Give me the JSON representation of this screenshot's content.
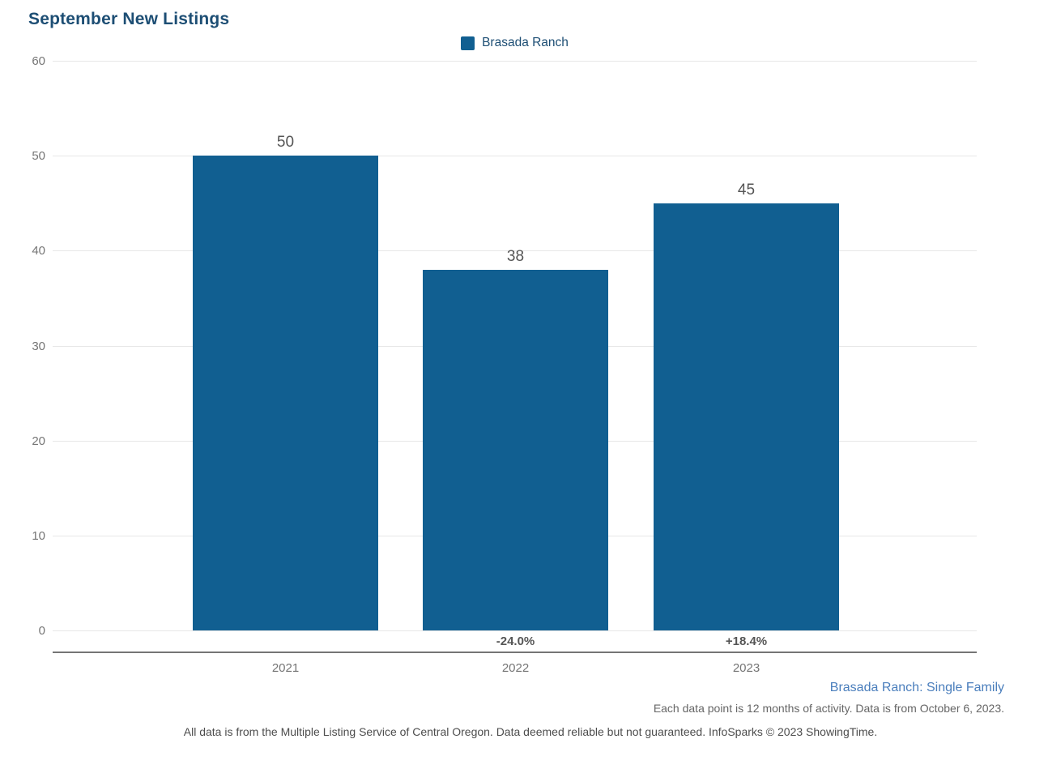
{
  "chart_data": {
    "type": "bar",
    "title": "September New Listings",
    "series": [
      {
        "name": "Brasada Ranch",
        "values": [
          50,
          38,
          45
        ]
      }
    ],
    "categories": [
      "2021",
      "2022",
      "2023"
    ],
    "value_labels": [
      "50",
      "38",
      "45"
    ],
    "pct_change_labels": [
      "",
      "-24.0%",
      "+18.4%"
    ],
    "ylim": [
      0,
      60
    ],
    "yticks": [
      0,
      10,
      20,
      30,
      40,
      50,
      60
    ],
    "grid": true,
    "legend_position": "top-center",
    "xlabel": "",
    "ylabel": ""
  },
  "colors": {
    "bar": "#115F91",
    "title": "#1D4E74",
    "legend_text": "#1D4E74",
    "tick_text": "#757575",
    "value_text": "#555555",
    "pct_text": "#555555",
    "gridline": "#e7e7e7",
    "axis_line": "#757575",
    "series_caption": "#4A7EBC",
    "datapoint_caption": "#666666",
    "disclaimer": "#4D4D4D"
  },
  "captions": {
    "series_scope": "Brasada Ranch: Single Family",
    "data_point_note": "Each data point is 12 months of activity. Data is from October 6, 2023.",
    "disclaimer": "All data is from the Multiple Listing Service of Central Oregon. Data deemed reliable but not guaranteed. InfoSparks © 2023 ShowingTime."
  }
}
